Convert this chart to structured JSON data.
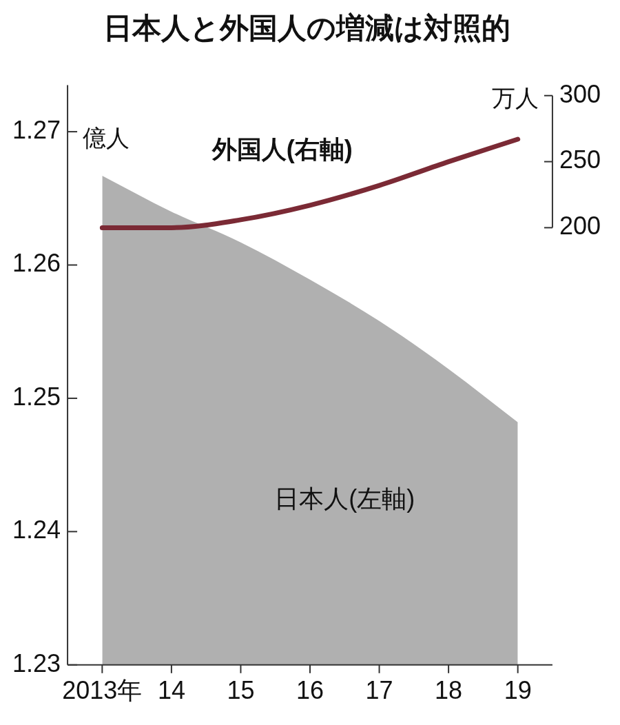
{
  "chart_data": {
    "type": "area",
    "title": "日本人と外国人の増減は対照的",
    "categories": [
      "2013年",
      "14",
      "15",
      "16",
      "17",
      "18",
      "19"
    ],
    "ylabel": "億人",
    "y2label": "万人",
    "series": [
      {
        "name": "日本人(左軸)",
        "color": "#b0b0b0",
        "values": [
          1.2667,
          1.264,
          1.2617,
          1.2589,
          1.2558,
          1.2522,
          1.2482
        ]
      },
      {
        "name": "外国人(右軸)",
        "type": "line",
        "axis": "y2",
        "color": "#7b2a35",
        "values": [
          200,
          200,
          206,
          217,
          232,
          250,
          267
        ]
      }
    ],
    "ylim": [
      1.23,
      1.2735
    ],
    "yticks": [
      1.23,
      1.24,
      1.25,
      1.26,
      1.27
    ],
    "y2lim": [
      -131,
      308
    ],
    "y2ticks": [
      200,
      250,
      300
    ],
    "grid": false,
    "legend": false,
    "marker": "none",
    "line_style": "solid"
  }
}
